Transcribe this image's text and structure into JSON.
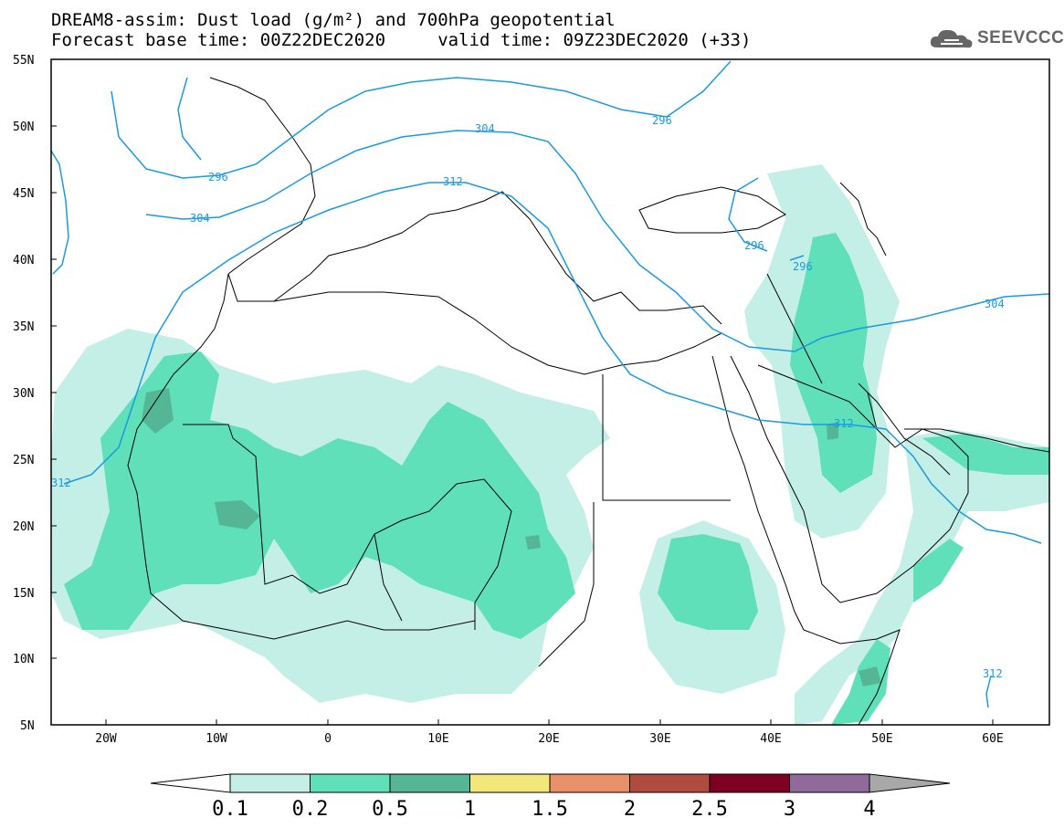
{
  "header": {
    "title_line1": "DREAM8-assim: Dust load (g/m²) and 700hPa geopotential",
    "title_line2": "Forecast base time: 00Z22DEC2020     valid time: 09Z23DEC2020 (+33)"
  },
  "logo": {
    "text": "SEEVCCC",
    "icon": "cloud-icon"
  },
  "map": {
    "lat_labels": [
      "55N",
      "50N",
      "45N",
      "40N",
      "35N",
      "30N",
      "25N",
      "20N",
      "15N",
      "10N",
      "5N"
    ],
    "lon_labels": [
      "20W",
      "10W",
      "0",
      "10E",
      "20E",
      "30E",
      "40E",
      "50E",
      "60E"
    ],
    "contour_labels": [
      "296",
      "304",
      "312",
      "296",
      "296",
      "304",
      "312",
      "312",
      "312",
      "304"
    ],
    "contour_color": "#1a9ae0",
    "dust_colors": {
      "c01": "#c4efe6",
      "c02": "#5fe0b9",
      "c05": "#54b695"
    }
  },
  "colorbar": {
    "labels": [
      "0.1",
      "0.2",
      "0.5",
      "1",
      "1.5",
      "2",
      "2.5",
      "3",
      "4"
    ],
    "colors": [
      "#c4efe6",
      "#5fe0b9",
      "#54b695",
      "#f4e77a",
      "#e89068",
      "#b04c3f",
      "#7d0022",
      "#8f6a9b"
    ]
  }
}
